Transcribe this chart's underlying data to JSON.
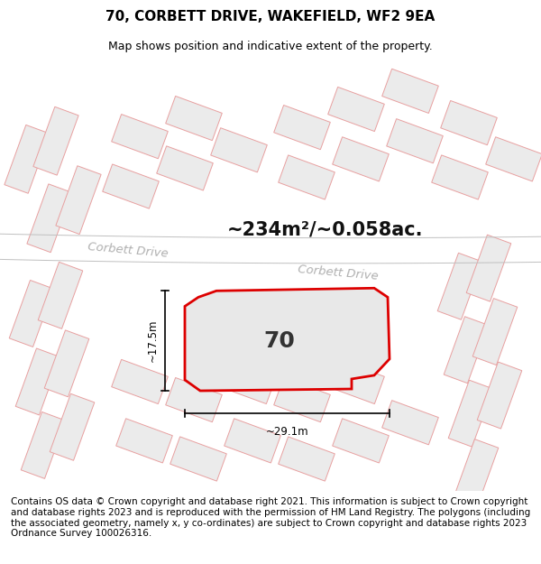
{
  "title": "70, CORBETT DRIVE, WAKEFIELD, WF2 9EA",
  "subtitle": "Map shows position and indicative extent of the property.",
  "area_label": "~234m²/~0.058ac.",
  "number_label": "70",
  "dim_width_label": "~29.1m",
  "dim_height_label": "~17.5m",
  "road_label_1": "Corbett Drive",
  "road_label_2": "Corbett Drive",
  "footer": "Contains OS data © Crown copyright and database right 2021. This information is subject to Crown copyright and database rights 2023 and is reproduced with the permission of HM Land Registry. The polygons (including the associated geometry, namely x, y co-ordinates) are subject to Crown copyright and database rights 2023 Ordnance Survey 100026316.",
  "bg_color": "#ffffff",
  "bld_fill": "#ebebeb",
  "bld_edge": "#e8a0a0",
  "title_fontsize": 11,
  "subtitle_fontsize": 9,
  "footer_fontsize": 7.5,
  "road_text_color": "#b0b0b0",
  "area_fontsize": 15,
  "plot_fill": "#e8e8e8",
  "plot_edge": "#dd0000",
  "plot_lw": 2.0,
  "num_fontsize": 18,
  "dim_fontsize": 8.5
}
